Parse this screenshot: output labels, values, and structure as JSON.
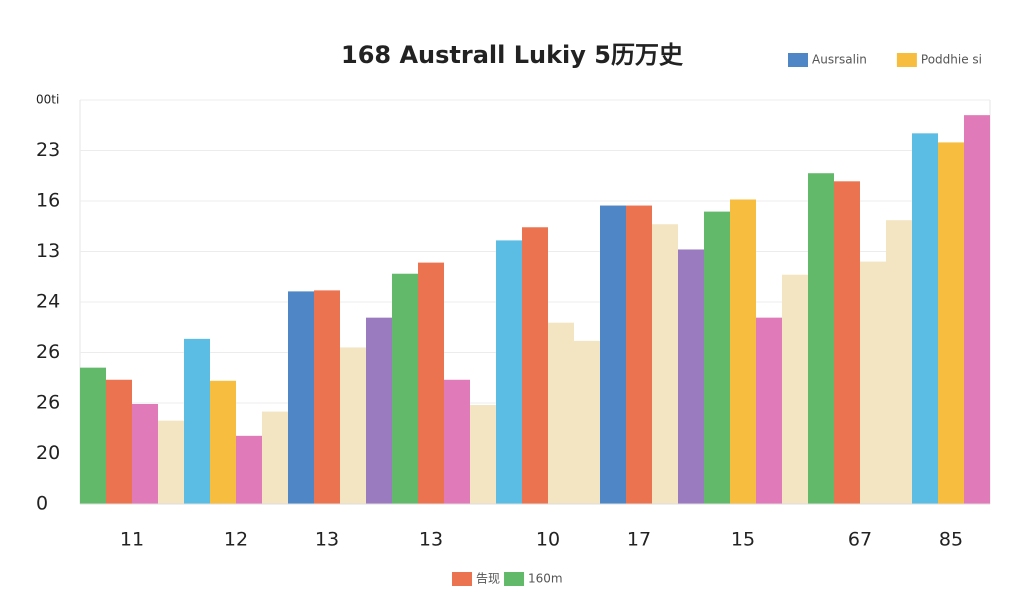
{
  "chart_data": {
    "type": "bar",
    "title": "168 Australl Lukiy 5历万史",
    "top_legend": [
      {
        "name": "Ausrsalin",
        "color": "#4f86c6"
      },
      {
        "name": "Poddhie si",
        "color": "#f7bd3e"
      }
    ],
    "bottom_legend": [
      {
        "name": "告现",
        "color": "#ec7350"
      },
      {
        "name": "160m",
        "color": "#63b96a"
      }
    ],
    "ylim": [
      0,
      8
    ],
    "yticks": [
      {
        "value": 0,
        "label": "0"
      },
      {
        "value": 1,
        "label": "20"
      },
      {
        "value": 2,
        "label": "26"
      },
      {
        "value": 3,
        "label": "26"
      },
      {
        "value": 4,
        "label": "24"
      },
      {
        "value": 5,
        "label": "13"
      },
      {
        "value": 6,
        "label": "16"
      },
      {
        "value": 7,
        "label": "23"
      },
      {
        "value": 8,
        "label": "00ti"
      }
    ],
    "grid": true,
    "groups": [
      {
        "category": "11",
        "bars": [
          {
            "color": "#63b96a",
            "value": 2.7
          },
          {
            "color": "#ec7350",
            "value": 2.46
          },
          {
            "color": "#e07ab8",
            "value": 1.98
          },
          {
            "color": "#f3e4c2",
            "value": 1.65
          }
        ]
      },
      {
        "category": "12",
        "bars": [
          {
            "color": "#5bbde4",
            "value": 3.27
          },
          {
            "color": "#f7bd3e",
            "value": 2.44
          },
          {
            "color": "#e07ab8",
            "value": 1.35
          },
          {
            "color": "#f3e4c2",
            "value": 1.83
          }
        ]
      },
      {
        "category": "13",
        "bars": [
          {
            "color": "#4f86c6",
            "value": 4.21
          },
          {
            "color": "#ec7350",
            "value": 4.23
          },
          {
            "color": "#f3e4c2",
            "value": 3.1
          }
        ]
      },
      {
        "category": "13",
        "bars": [
          {
            "color": "#9b7bc0",
            "value": 3.69
          },
          {
            "color": "#63b96a",
            "value": 4.56
          },
          {
            "color": "#ec7350",
            "value": 4.78
          },
          {
            "color": "#e07ab8",
            "value": 2.46
          },
          {
            "color": "#f3e4c2",
            "value": 1.96
          }
        ]
      },
      {
        "category": "10",
        "bars": [
          {
            "color": "#5bbde4",
            "value": 5.22
          },
          {
            "color": "#ec7350",
            "value": 5.48
          },
          {
            "color": "#f3e4c2",
            "value": 3.59
          },
          {
            "color": "#f3e4c2",
            "value": 3.23
          }
        ]
      },
      {
        "category": "17",
        "bars": [
          {
            "color": "#4f86c6",
            "value": 5.91
          },
          {
            "color": "#ec7350",
            "value": 5.91
          },
          {
            "color": "#f3e4c2",
            "value": 5.54
          }
        ]
      },
      {
        "category": "15",
        "bars": [
          {
            "color": "#9b7bc0",
            "value": 5.04
          },
          {
            "color": "#63b96a",
            "value": 5.79
          },
          {
            "color": "#f7bd3e",
            "value": 6.03
          },
          {
            "color": "#e07ab8",
            "value": 3.69
          },
          {
            "color": "#f3e4c2",
            "value": 4.54
          }
        ]
      },
      {
        "category": "67",
        "bars": [
          {
            "color": "#63b96a",
            "value": 6.55
          },
          {
            "color": "#ec7350",
            "value": 6.39
          },
          {
            "color": "#f3e4c2",
            "value": 4.8
          },
          {
            "color": "#f3e4c2",
            "value": 5.62
          }
        ]
      },
      {
        "category": "85",
        "bars": [
          {
            "color": "#5bbde4",
            "value": 7.34
          },
          {
            "color": "#f7bd3e",
            "value": 7.16
          },
          {
            "color": "#e07ab8",
            "value": 7.7
          }
        ]
      }
    ]
  }
}
